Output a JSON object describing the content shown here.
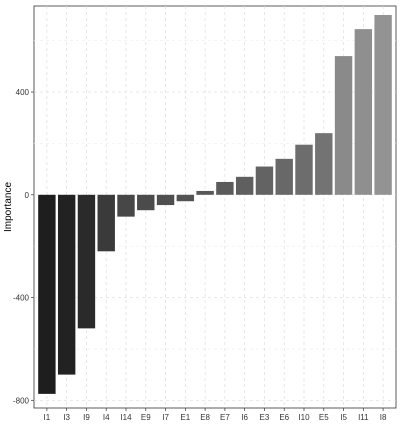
{
  "chart_data": {
    "type": "bar",
    "title": "",
    "xlabel": "",
    "ylabel": "Importance",
    "ylim": [
      -830,
      735
    ],
    "yticks": [
      -800,
      -400,
      0,
      400
    ],
    "grid": true,
    "legend": "none",
    "categories": [
      "I1",
      "I3",
      "I9",
      "I4",
      "I14",
      "E9",
      "I7",
      "E1",
      "E8",
      "E7",
      "I6",
      "E3",
      "E6",
      "I10",
      "E5",
      "I5",
      "I11",
      "I8"
    ],
    "values": [
      -775,
      -700,
      -520,
      -220,
      -85,
      -60,
      -40,
      -25,
      15,
      50,
      70,
      110,
      140,
      195,
      240,
      540,
      645,
      700
    ],
    "colors": [
      "#1e1e1e",
      "#222222",
      "#2a2a2a",
      "#3a3a3a",
      "#474747",
      "#4b4b4b",
      "#4f4f4f",
      "#535353",
      "#575757",
      "#5b5b5b",
      "#5f5f5f",
      "#636363",
      "#686868",
      "#6d6d6d",
      "#737373",
      "#8a8a8a",
      "#8f8f8f",
      "#939393"
    ]
  }
}
